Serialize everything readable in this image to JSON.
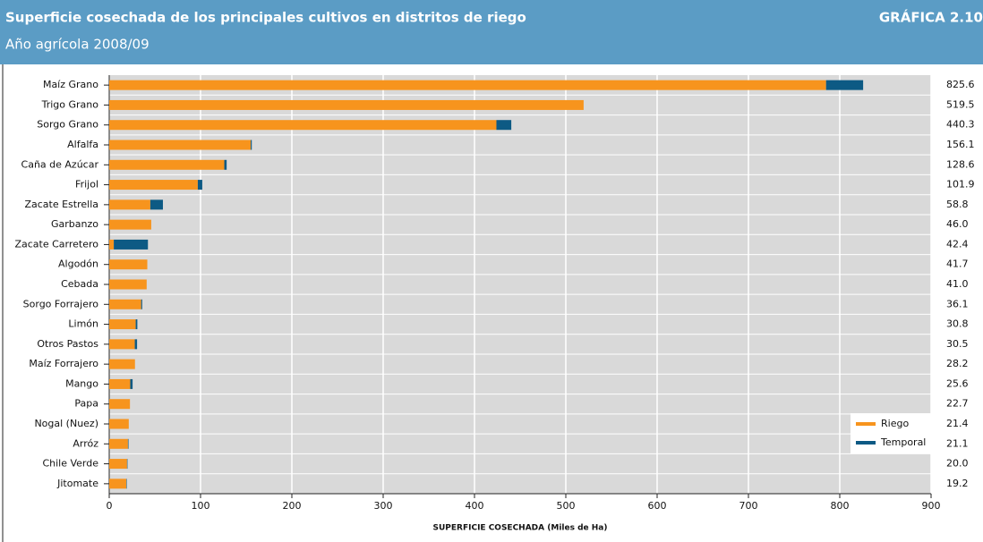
{
  "chart_data": {
    "type": "stacked-barh",
    "title": "Superficie cosechada de los principales cultivos en distritos de riego",
    "subtitle": "Año agrícola 2008/09",
    "label": "GRÁFICA 2.10",
    "xlabel": "SUPERFICIE COSECHADA (Miles de Ha)",
    "categories": [
      "Maíz Grano",
      "Trigo Grano",
      "Sorgo Grano",
      "Alfalfa",
      "Caña de Azúcar",
      "Frijol",
      "Zacate Estrella",
      "Garbanzo",
      "Zacate Carretero",
      "Algodón",
      "Cebada",
      "Sorgo Forrajero",
      "Limón",
      "Otros Pastos",
      "Maíz Forrajero",
      "Mango",
      "Papa",
      "Nogal (Nuez)",
      "Arróz",
      "Chile Verde",
      "Jitomate"
    ],
    "series": [
      {
        "name": "Riego",
        "color": "#f7941d",
        "values": [
          785,
          519.5,
          424,
          155,
          126,
          97,
          45,
          46,
          5,
          41.7,
          41,
          35,
          29,
          28,
          28.2,
          23,
          22.7,
          21.4,
          20.5,
          19.5,
          18.7
        ]
      },
      {
        "name": "Temporal",
        "color": "#0d5a84",
        "values": [
          40.6,
          0,
          16.3,
          1.1,
          2.6,
          4.9,
          13.8,
          0,
          37.4,
          0,
          0,
          1.1,
          1.8,
          2.5,
          0,
          2.6,
          0,
          0,
          0.6,
          0.5,
          0.5
        ]
      }
    ],
    "totals": [
      "825.6",
      "519.5",
      "440.3",
      "156.1",
      "128.6",
      "101.9",
      "58.8",
      "46.0",
      "42.4",
      "41.7",
      "41.0",
      "36.1",
      "30.8",
      "30.5",
      "28.2",
      "25.6",
      "22.7",
      "21.4",
      "21.1",
      "20.0",
      "19.2"
    ],
    "xlim": [
      0,
      900
    ],
    "xticks": [
      0,
      100,
      200,
      300,
      400,
      500,
      600,
      700,
      800,
      900
    ],
    "grid": true,
    "legend": "lower right"
  }
}
